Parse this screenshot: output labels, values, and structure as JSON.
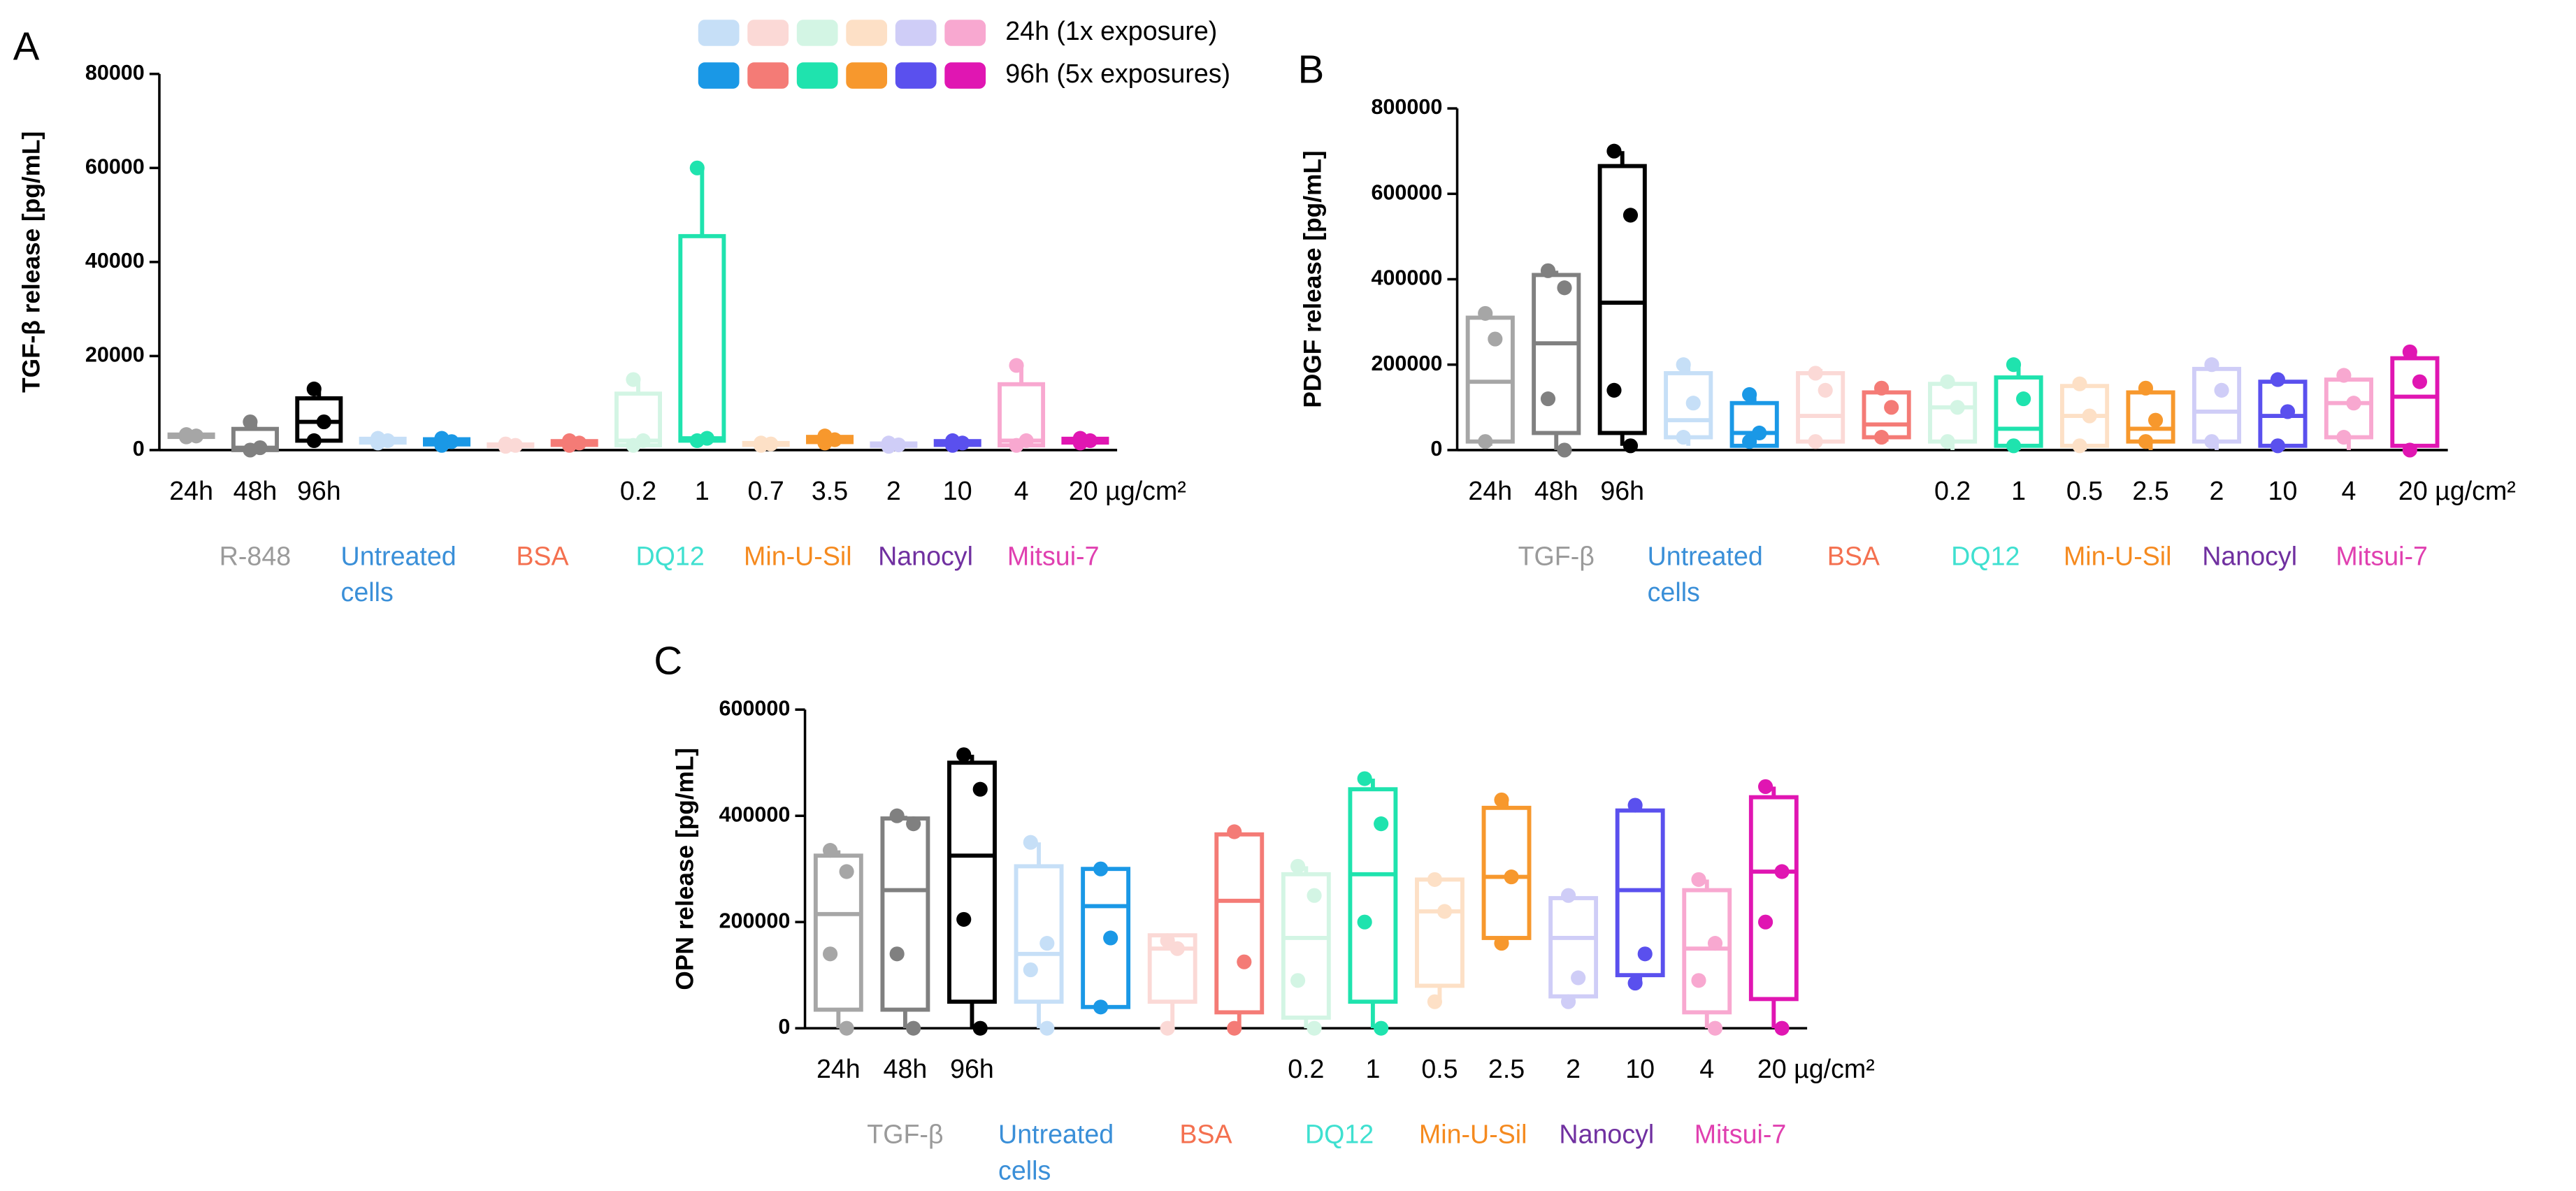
{
  "legend": {
    "rows": [
      {
        "label": "24h (1x exposure)",
        "colors": [
          "#c6dff7",
          "#fbd9d6",
          "#d3f5e4",
          "#fde0c6",
          "#cfcdf7",
          "#f8a8d0"
        ]
      },
      {
        "label": "96h (5x exposures)",
        "colors": [
          "#1a98e6",
          "#f47b76",
          "#1fe3ae",
          "#f7982d",
          "#5a50ee",
          "#e016b2"
        ]
      }
    ]
  },
  "chart_data": [
    {
      "type": "box",
      "panel": "A",
      "ylabel": "TGF-β release [pg/mL]",
      "ylim": [
        0,
        80000
      ],
      "yticks": [
        0,
        20000,
        40000,
        60000,
        80000
      ],
      "categories": [
        "24h",
        "48h",
        "96h",
        null,
        null,
        null,
        null,
        "0.2",
        "1",
        "0.7",
        "3.5",
        "2",
        "10",
        "4",
        "20 µg/cm²"
      ],
      "groups": [
        {
          "name": "R-848",
          "color": "#9a9a9a"
        },
        {
          "name": "Untreated cells",
          "color": "#3a8fd8"
        },
        {
          "name": "BSA",
          "color": "#f4704f"
        },
        {
          "name": "DQ12",
          "color": "#3fe0d0"
        },
        {
          "name": "Min-U-Sil",
          "color": "#f58a1f"
        },
        {
          "name": "Nanocyl",
          "color": "#7030a0"
        },
        {
          "name": "Mitsui-7",
          "color": "#e040b0"
        }
      ],
      "boxes": [
        {
          "color": "#a6a6a6",
          "min": 2500,
          "q1": 2800,
          "median": 3000,
          "q3": 3300,
          "max": 3600,
          "points": [
            3300,
            3000,
            2800
          ]
        },
        {
          "color": "#808080",
          "min": 0,
          "q1": 0,
          "median": 500,
          "q3": 4500,
          "max": 6000,
          "points": [
            6000,
            500,
            0
          ]
        },
        {
          "color": "#000000",
          "min": 2000,
          "q1": 2000,
          "median": 6000,
          "q3": 11000,
          "max": 13000,
          "points": [
            13000,
            6000,
            2000
          ]
        },
        {
          "color": "#c6dff7",
          "min": 1500,
          "q1": 1600,
          "median": 2000,
          "q3": 2400,
          "max": 2500,
          "points": [
            2500,
            2000,
            1500
          ]
        },
        {
          "color": "#1a98e6",
          "min": 1000,
          "q1": 1200,
          "median": 1800,
          "q3": 2300,
          "max": 2500,
          "points": [
            2500,
            1800,
            1000
          ]
        },
        {
          "color": "#fbd9d6",
          "min": 800,
          "q1": 900,
          "median": 1000,
          "q3": 1200,
          "max": 1300,
          "points": [
            1300,
            1000,
            800
          ]
        },
        {
          "color": "#f47b76",
          "min": 1000,
          "q1": 1100,
          "median": 1500,
          "q3": 1900,
          "max": 2000,
          "points": [
            2000,
            1500,
            1000
          ]
        },
        {
          "color": "#d3f5e4",
          "min": 1000,
          "q1": 1000,
          "median": 2000,
          "q3": 12000,
          "max": 15000,
          "points": [
            15000,
            2000,
            1000
          ]
        },
        {
          "color": "#1fe3ae",
          "min": 2000,
          "q1": 2000,
          "median": 2500,
          "q3": 45500,
          "max": 60000,
          "points": [
            60000,
            2500,
            2000
          ]
        },
        {
          "color": "#fde0c6",
          "min": 1000,
          "q1": 1100,
          "median": 1300,
          "q3": 1500,
          "max": 1500,
          "points": [
            1500,
            1300,
            1000
          ]
        },
        {
          "color": "#f7982d",
          "min": 1500,
          "q1": 1700,
          "median": 2200,
          "q3": 2800,
          "max": 3000,
          "points": [
            3000,
            2200,
            1500
          ]
        },
        {
          "color": "#cfcdf7",
          "min": 800,
          "q1": 900,
          "median": 1100,
          "q3": 1400,
          "max": 1500,
          "points": [
            1500,
            1100,
            800
          ]
        },
        {
          "color": "#5a50ee",
          "min": 1000,
          "q1": 1100,
          "median": 1500,
          "q3": 1900,
          "max": 2000,
          "points": [
            2000,
            1500,
            1000
          ]
        },
        {
          "color": "#f8a8d0",
          "min": 1000,
          "q1": 1000,
          "median": 2000,
          "q3": 14000,
          "max": 18000,
          "points": [
            18000,
            2000,
            1000
          ]
        },
        {
          "color": "#e016b2",
          "min": 1500,
          "q1": 1600,
          "median": 2000,
          "q3": 2400,
          "max": 2500,
          "points": [
            2500,
            2000,
            1500
          ]
        }
      ]
    },
    {
      "type": "box",
      "panel": "B",
      "ylabel": "PDGF release [pg/mL]",
      "ylim": [
        0,
        800000
      ],
      "yticks": [
        0,
        200000,
        400000,
        600000,
        800000
      ],
      "categories": [
        "24h",
        "48h",
        "96h",
        null,
        null,
        null,
        null,
        "0.2",
        "1",
        "0.5",
        "2.5",
        "2",
        "10",
        "4",
        "20 µg/cm²"
      ],
      "groups": [
        {
          "name": "TGF-β",
          "color": "#9a9a9a"
        },
        {
          "name": "Untreated cells",
          "color": "#3a8fd8"
        },
        {
          "name": "BSA",
          "color": "#f4704f"
        },
        {
          "name": "DQ12",
          "color": "#3fe0d0"
        },
        {
          "name": "Min-U-Sil",
          "color": "#f58a1f"
        },
        {
          "name": "Nanocyl",
          "color": "#7030a0"
        },
        {
          "name": "Mitsui-7",
          "color": "#e040b0"
        }
      ],
      "boxes": [
        {
          "color": "#a6a6a6",
          "min": 10000,
          "q1": 20000,
          "median": 160000,
          "q3": 310000,
          "max": 320000,
          "points": [
            320000,
            260000,
            20000
          ]
        },
        {
          "color": "#808080",
          "min": 0,
          "q1": 40000,
          "median": 250000,
          "q3": 410000,
          "max": 420000,
          "points": [
            420000,
            380000,
            120000,
            0
          ]
        },
        {
          "color": "#000000",
          "min": 10000,
          "q1": 40000,
          "median": 345000,
          "q3": 665000,
          "max": 700000,
          "points": [
            700000,
            550000,
            140000,
            10000
          ]
        },
        {
          "color": "#c6dff7",
          "min": 10000,
          "q1": 30000,
          "median": 70000,
          "q3": 180000,
          "max": 200000,
          "points": [
            200000,
            110000,
            30000
          ]
        },
        {
          "color": "#1a98e6",
          "min": 10000,
          "q1": 10000,
          "median": 40000,
          "q3": 110000,
          "max": 130000,
          "points": [
            130000,
            40000,
            20000
          ]
        },
        {
          "color": "#fbd9d6",
          "min": 20000,
          "q1": 20000,
          "median": 80000,
          "q3": 180000,
          "max": 190000,
          "points": [
            180000,
            140000,
            20000
          ]
        },
        {
          "color": "#f47b76",
          "min": 20000,
          "q1": 30000,
          "median": 60000,
          "q3": 135000,
          "max": 145000,
          "points": [
            145000,
            100000,
            30000
          ]
        },
        {
          "color": "#d3f5e4",
          "min": 0,
          "q1": 20000,
          "median": 100000,
          "q3": 155000,
          "max": 160000,
          "points": [
            160000,
            100000,
            20000
          ]
        },
        {
          "color": "#1fe3ae",
          "min": 0,
          "q1": 10000,
          "median": 50000,
          "q3": 170000,
          "max": 200000,
          "points": [
            200000,
            120000,
            10000
          ]
        },
        {
          "color": "#fde0c6",
          "min": 0,
          "q1": 10000,
          "median": 80000,
          "q3": 150000,
          "max": 155000,
          "points": [
            155000,
            80000,
            10000
          ]
        },
        {
          "color": "#f7982d",
          "min": 0,
          "q1": 20000,
          "median": 50000,
          "q3": 135000,
          "max": 145000,
          "points": [
            145000,
            70000,
            20000
          ]
        },
        {
          "color": "#cfcdf7",
          "min": 0,
          "q1": 20000,
          "median": 90000,
          "q3": 190000,
          "max": 200000,
          "points": [
            200000,
            140000,
            20000
          ]
        },
        {
          "color": "#5a50ee",
          "min": 0,
          "q1": 10000,
          "median": 80000,
          "q3": 160000,
          "max": 165000,
          "points": [
            165000,
            90000,
            10000
          ]
        },
        {
          "color": "#f8a8d0",
          "min": 0,
          "q1": 30000,
          "median": 110000,
          "q3": 165000,
          "max": 175000,
          "points": [
            175000,
            110000,
            30000
          ]
        },
        {
          "color": "#e016b2",
          "min": 0,
          "q1": 10000,
          "median": 125000,
          "q3": 215000,
          "max": 230000,
          "points": [
            230000,
            160000,
            0
          ]
        }
      ]
    },
    {
      "type": "box",
      "panel": "C",
      "ylabel": "OPN release [pg/mL]",
      "ylim": [
        0,
        600000
      ],
      "yticks": [
        0,
        200000,
        400000,
        600000
      ],
      "categories": [
        "24h",
        "48h",
        "96h",
        null,
        null,
        null,
        null,
        "0.2",
        "1",
        "0.5",
        "2.5",
        "2",
        "10",
        "4",
        "20 µg/cm²"
      ],
      "groups": [
        {
          "name": "TGF-β",
          "color": "#9a9a9a"
        },
        {
          "name": "Untreated cells",
          "color": "#3a8fd8"
        },
        {
          "name": "BSA",
          "color": "#f4704f"
        },
        {
          "name": "DQ12",
          "color": "#3fe0d0"
        },
        {
          "name": "Min-U-Sil",
          "color": "#f58a1f"
        },
        {
          "name": "Nanocyl",
          "color": "#7030a0"
        },
        {
          "name": "Mitsui-7",
          "color": "#e040b0"
        }
      ],
      "boxes": [
        {
          "color": "#a6a6a6",
          "min": 0,
          "q1": 35000,
          "median": 215000,
          "q3": 325000,
          "max": 335000,
          "points": [
            335000,
            295000,
            140000,
            0
          ]
        },
        {
          "color": "#808080",
          "min": 0,
          "q1": 35000,
          "median": 260000,
          "q3": 395000,
          "max": 400000,
          "points": [
            400000,
            385000,
            140000,
            0
          ]
        },
        {
          "color": "#000000",
          "min": 0,
          "q1": 50000,
          "median": 325000,
          "q3": 500000,
          "max": 515000,
          "points": [
            515000,
            450000,
            205000,
            0
          ]
        },
        {
          "color": "#c6dff7",
          "min": 0,
          "q1": 50000,
          "median": 140000,
          "q3": 305000,
          "max": 350000,
          "points": [
            350000,
            160000,
            110000,
            0
          ]
        },
        {
          "color": "#1a98e6",
          "min": 40000,
          "q1": 40000,
          "median": 230000,
          "q3": 300000,
          "max": 300000,
          "points": [
            300000,
            170000,
            40000
          ]
        },
        {
          "color": "#fbd9d6",
          "min": 0,
          "q1": 50000,
          "median": 150000,
          "q3": 175000,
          "max": 175000,
          "points": [
            165000,
            150000,
            0
          ]
        },
        {
          "color": "#f47b76",
          "min": 0,
          "q1": 30000,
          "median": 240000,
          "q3": 365000,
          "max": 370000,
          "points": [
            370000,
            125000,
            0
          ]
        },
        {
          "color": "#d3f5e4",
          "min": 0,
          "q1": 20000,
          "median": 170000,
          "q3": 290000,
          "max": 305000,
          "points": [
            305000,
            250000,
            90000,
            0
          ]
        },
        {
          "color": "#1fe3ae",
          "min": 0,
          "q1": 50000,
          "median": 290000,
          "q3": 450000,
          "max": 470000,
          "points": [
            470000,
            385000,
            200000,
            0
          ]
        },
        {
          "color": "#fde0c6",
          "min": 50000,
          "q1": 80000,
          "median": 220000,
          "q3": 280000,
          "max": 280000,
          "points": [
            280000,
            220000,
            50000
          ]
        },
        {
          "color": "#f7982d",
          "min": 160000,
          "q1": 170000,
          "median": 285000,
          "q3": 415000,
          "max": 430000,
          "points": [
            430000,
            285000,
            160000
          ]
        },
        {
          "color": "#cfcdf7",
          "min": 50000,
          "q1": 60000,
          "median": 170000,
          "q3": 245000,
          "max": 250000,
          "points": [
            250000,
            95000,
            50000
          ]
        },
        {
          "color": "#5a50ee",
          "min": 85000,
          "q1": 100000,
          "median": 260000,
          "q3": 410000,
          "max": 420000,
          "points": [
            420000,
            140000,
            85000
          ]
        },
        {
          "color": "#f8a8d0",
          "min": 0,
          "q1": 30000,
          "median": 150000,
          "q3": 260000,
          "max": 280000,
          "points": [
            280000,
            160000,
            90000,
            0
          ]
        },
        {
          "color": "#e016b2",
          "min": 0,
          "q1": 55000,
          "median": 295000,
          "q3": 435000,
          "max": 455000,
          "points": [
            455000,
            295000,
            200000,
            0
          ]
        }
      ]
    }
  ]
}
